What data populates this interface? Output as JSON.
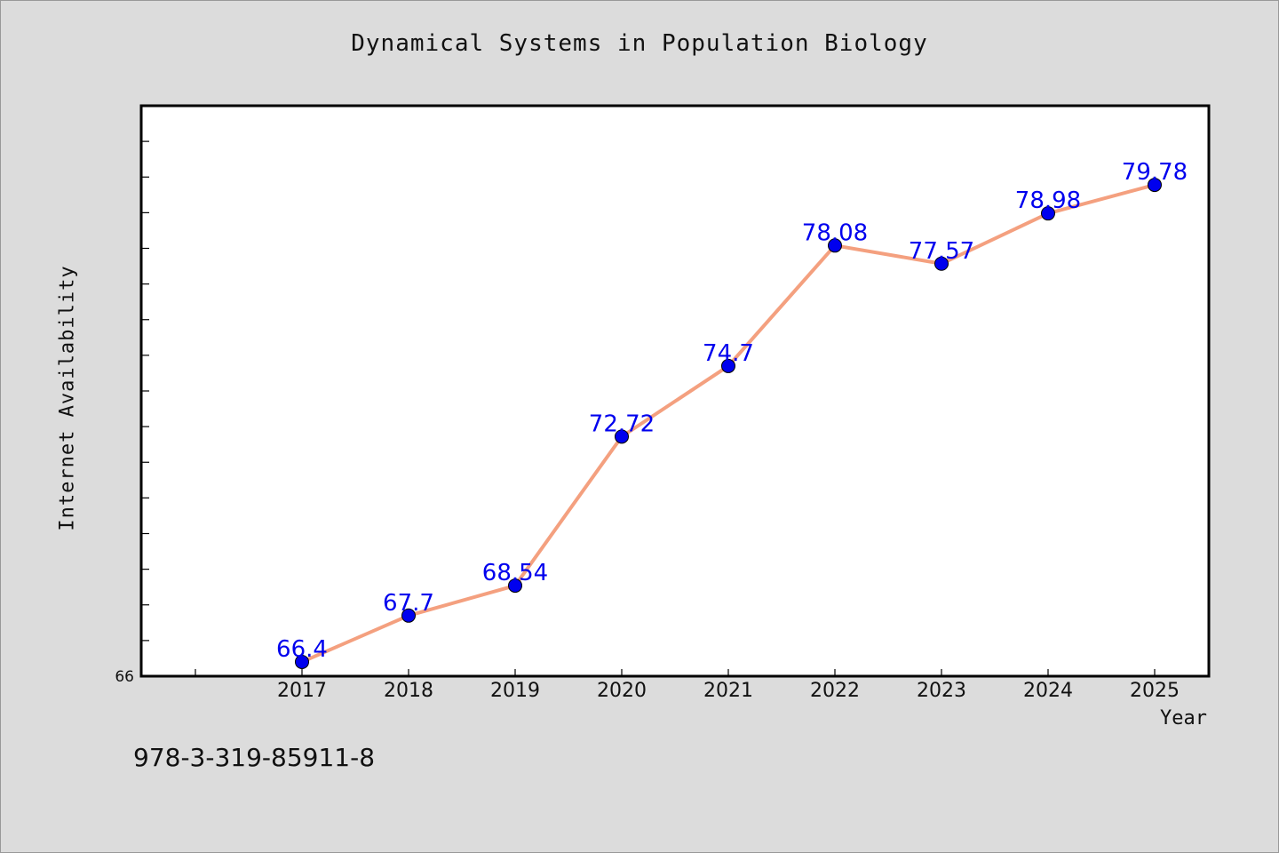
{
  "chart_data": {
    "type": "line",
    "title": "Dynamical Systems in Population Biology",
    "xlabel": "Year",
    "ylabel": "Internet Availability",
    "categories": [
      "2017",
      "2018",
      "2019",
      "2020",
      "2021",
      "2022",
      "2023",
      "2024",
      "2025"
    ],
    "series": [
      {
        "values": [
          66.4,
          67.7,
          68.54,
          72.72,
          74.7,
          78.08,
          77.57,
          78.98,
          79.78
        ],
        "data_labels": [
          "66.4",
          "67.7",
          "68.54",
          "72.72",
          "74.7",
          "78.08",
          "77.57",
          "78.98",
          "79.78"
        ],
        "line_color": "#f4a07f",
        "marker_color": "#0000ee",
        "label_color": "#0000ee"
      }
    ],
    "ylim": [
      66,
      82
    ],
    "y_tick_labels": [
      "66"
    ],
    "grid": false,
    "legend": "none"
  },
  "footer": {
    "isbn": "978-3-319-85911-8"
  },
  "colors": {
    "background": "#dcdcdc",
    "plot_background": "#ffffff"
  }
}
